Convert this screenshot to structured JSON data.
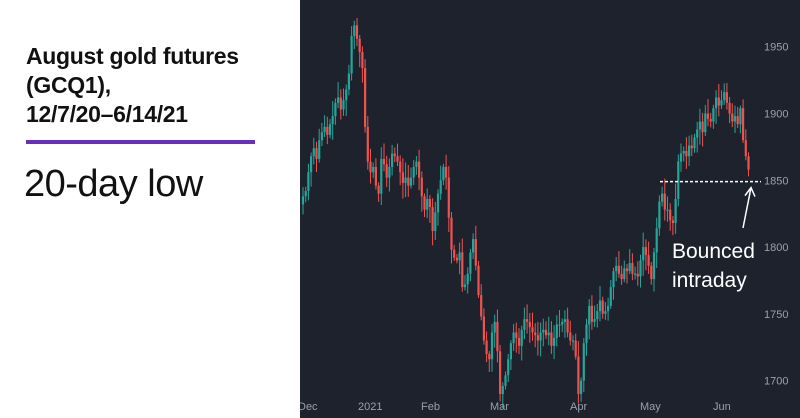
{
  "title_lines": [
    "August gold futures",
    "(GCQ1),",
    "12/7/20–6/14/21"
  ],
  "subtitle": "20-day low",
  "colors": {
    "accent": "#6a2dbd",
    "background": "#1e222d",
    "up": "#26a69a",
    "down": "#ef5350",
    "tick_text": "#9aa0aa"
  },
  "chart_data": {
    "type": "candlestick",
    "title": "August gold futures (GCQ1), 12/7/20–6/14/21",
    "subtitle": "20-day low",
    "xlabel": "",
    "ylabel": "",
    "x_tick_labels": [
      "Dec",
      "2021",
      "Feb",
      "Mar",
      "Apr",
      "May",
      "Jun"
    ],
    "y_ticks": [
      1700,
      1750,
      1800,
      1850,
      1900,
      1950
    ],
    "ylim": [
      1672,
      1985
    ],
    "grid": false,
    "legend": "none",
    "y_axis_position": "right",
    "reference_line": {
      "value": 1849,
      "style": "dashed",
      "color": "#ffffff"
    },
    "annotation": {
      "lines": [
        "Bounced",
        "intraday"
      ],
      "arrow_target_value": 1849
    },
    "closes": [
      1838,
      1842,
      1856,
      1868,
      1874,
      1866,
      1880,
      1886,
      1890,
      1884,
      1892,
      1898,
      1908,
      1912,
      1903,
      1910,
      1918,
      1930,
      1958,
      1966,
      1956,
      1946,
      1934,
      1890,
      1864,
      1856,
      1860,
      1846,
      1840,
      1866,
      1862,
      1852,
      1860,
      1870,
      1868,
      1864,
      1856,
      1848,
      1852,
      1846,
      1852,
      1860,
      1864,
      1852,
      1838,
      1828,
      1836,
      1830,
      1812,
      1826,
      1840,
      1850,
      1860,
      1852,
      1822,
      1798,
      1792,
      1790,
      1796,
      1770,
      1772,
      1780,
      1796,
      1806,
      1786,
      1764,
      1748,
      1730,
      1720,
      1716,
      1736,
      1744,
      1722,
      1690,
      1696,
      1704,
      1716,
      1728,
      1736,
      1732,
      1726,
      1738,
      1746,
      1744,
      1740,
      1736,
      1734,
      1730,
      1736,
      1738,
      1734,
      1736,
      1726,
      1732,
      1742,
      1742,
      1744,
      1746,
      1736,
      1730,
      1730,
      1718,
      1690,
      1700,
      1728,
      1742,
      1756,
      1744,
      1746,
      1752,
      1760,
      1750,
      1752,
      1756,
      1770,
      1782,
      1786,
      1780,
      1776,
      1784,
      1782,
      1788,
      1780,
      1780,
      1778,
      1790,
      1800,
      1794,
      1786,
      1776,
      1796,
      1814,
      1834,
      1840,
      1828,
      1828,
      1820,
      1818,
      1836,
      1864,
      1870,
      1872,
      1868,
      1876,
      1874,
      1882,
      1888,
      1894,
      1886,
      1900,
      1896,
      1894,
      1904,
      1912,
      1906,
      1910,
      1916,
      1908,
      1900,
      1894,
      1898,
      1892,
      1904,
      1880,
      1868,
      1858
    ]
  }
}
